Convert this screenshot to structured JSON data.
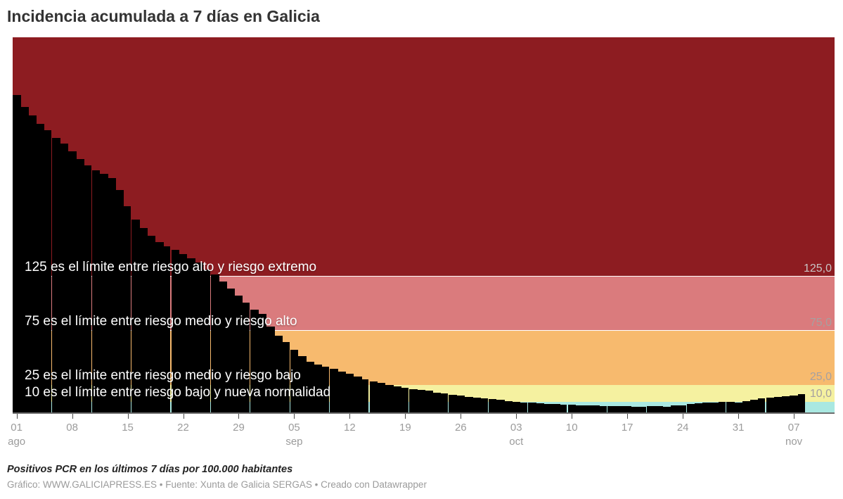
{
  "title": "Incidencia acumulada a 7 días en Galicia",
  "footer": {
    "note": "Positivos PCR en los últimos 7 días por 100.000 habitantes",
    "byline": "Gráfico: WWW.GALICIAPRESS.ES • Fuente: Xunta de Galicia SERGAS • Creado con Datawrapper"
  },
  "chart_data": {
    "type": "bar",
    "title": "Incidencia acumulada a 7 días en Galicia",
    "ylabel": "Positivos PCR en los últimos 7 días por 100.000 habitantes",
    "xlabel": "",
    "ylim": [
      0,
      346
    ],
    "grid": "horizontal-threshold-lines",
    "legend_position": "none",
    "bar_color": "#000000",
    "n_days": 100,
    "x_start_label": "01 ago",
    "x_end_label": "07 nov",
    "values": [
      293,
      282,
      274,
      266,
      260,
      253,
      248,
      241,
      234,
      228,
      223,
      220,
      216,
      205,
      190,
      178,
      170,
      163,
      157,
      153,
      150,
      146,
      142,
      138,
      132,
      127,
      121,
      114,
      108,
      101,
      95,
      91,
      79,
      71,
      65,
      58,
      52,
      47,
      44,
      42.5,
      40,
      37.5,
      35.5,
      33,
      30.5,
      28.5,
      27,
      25.5,
      24,
      22.5,
      21.5,
      21,
      19.8,
      18.5,
      17.5,
      16.1,
      15.4,
      14.5,
      13.4,
      12.8,
      12.1,
      11.5,
      10.6,
      9.9,
      9.3,
      8.9,
      8.4,
      8,
      7.6,
      7.1,
      6.9,
      6.7,
      6.5,
      6.3,
      6.1,
      5.9,
      5.8,
      5.7,
      5.2,
      5.4,
      5.7,
      5.7,
      5.4,
      6.2,
      6.8,
      7.9,
      8.3,
      9,
      9.4,
      9.9,
      9.9,
      9.4,
      10.3,
      11.8,
      12.9,
      13.8,
      14.4,
      15.1,
      15.9,
      17.2
    ],
    "x_ticks": [
      {
        "day": 0,
        "label": "01",
        "month": "ago"
      },
      {
        "day": 7,
        "label": "08",
        "month": ""
      },
      {
        "day": 14,
        "label": "15",
        "month": ""
      },
      {
        "day": 21,
        "label": "22",
        "month": ""
      },
      {
        "day": 28,
        "label": "29",
        "month": ""
      },
      {
        "day": 35,
        "label": "05",
        "month": "sep"
      },
      {
        "day": 42,
        "label": "12",
        "month": ""
      },
      {
        "day": 49,
        "label": "19",
        "month": ""
      },
      {
        "day": 56,
        "label": "26",
        "month": ""
      },
      {
        "day": 63,
        "label": "03",
        "month": "oct"
      },
      {
        "day": 70,
        "label": "10",
        "month": ""
      },
      {
        "day": 77,
        "label": "17",
        "month": ""
      },
      {
        "day": 84,
        "label": "24",
        "month": ""
      },
      {
        "day": 91,
        "label": "31",
        "month": ""
      },
      {
        "day": 98,
        "label": "07",
        "month": "nov"
      }
    ],
    "y_axis_labels": [
      {
        "value": 125,
        "label": "125,0"
      },
      {
        "value": 75,
        "label": "75,0"
      },
      {
        "value": 25,
        "label": "25,0"
      },
      {
        "value": 10,
        "label": "10,0"
      }
    ],
    "bands": [
      {
        "name": "riesgo-extremo",
        "from": 125,
        "to": 346,
        "color": "#8d1c21"
      },
      {
        "name": "riesgo-alto",
        "from": 75,
        "to": 125,
        "color": "#da7b7d"
      },
      {
        "name": "riesgo-medio",
        "from": 25,
        "to": 75,
        "color": "#f7ba6e"
      },
      {
        "name": "riesgo-bajo",
        "from": 10,
        "to": 25,
        "color": "#f5f1a0"
      },
      {
        "name": "nueva-normalidad",
        "from": 0,
        "to": 10,
        "color": "#a9e8e1"
      }
    ],
    "threshold_lines": [
      125,
      75
    ],
    "annotations": [
      {
        "value": 125,
        "text": "125 es el límite entre riesgo alto y riesgo extremo"
      },
      {
        "value": 75,
        "text": "75 es el límite entre riesgo medio y riesgo alto"
      },
      {
        "value": 25,
        "text": "25 es el límite entre riesgo medio y riesgo bajo"
      },
      {
        "value": 10,
        "text": "10 es el límite entre riesgo bajo y nueva normalidad"
      }
    ]
  }
}
